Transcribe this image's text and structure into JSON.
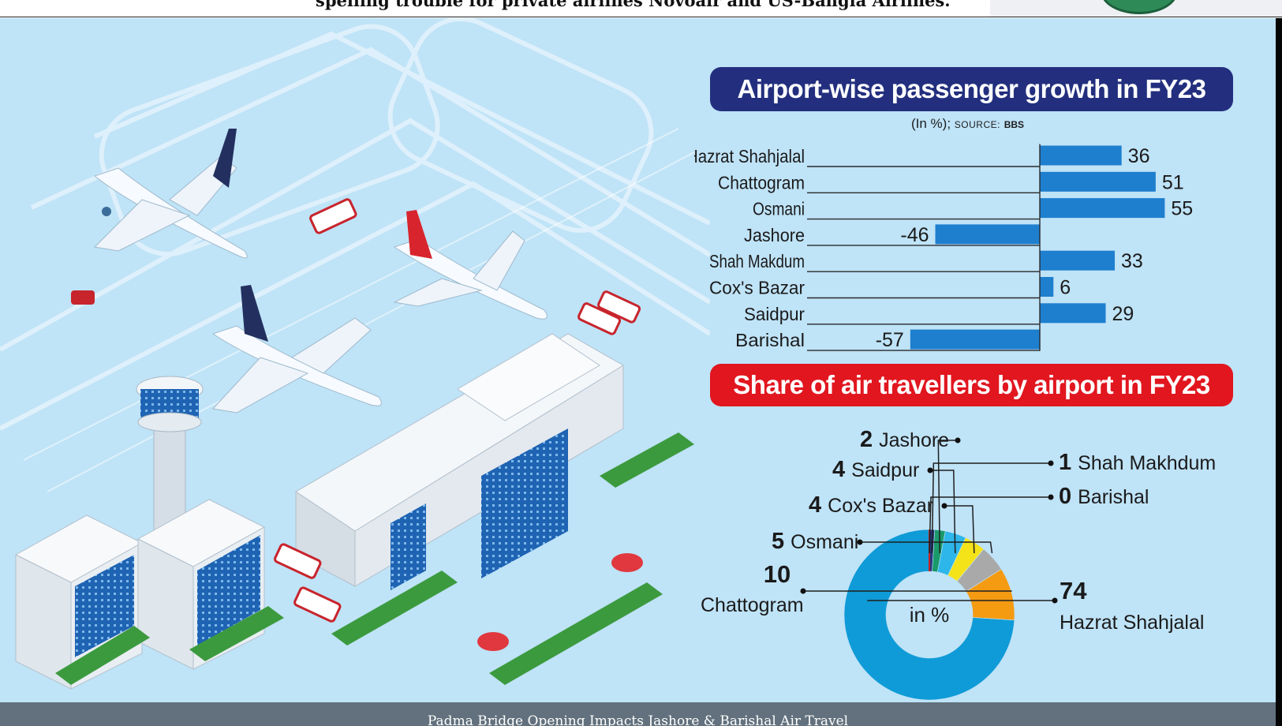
{
  "page": {
    "top_caption": "spelling trouble for private airlines Novoair and US-Bangla Airlines.",
    "footer_caption": "Padma Bridge Opening Impacts Jashore & Barishal Air Travel"
  },
  "colors": {
    "background": "#bfe3f7",
    "bar": "#1e7fcf",
    "bar_banner": "#232f7e",
    "pie_banner": "#e1161f"
  },
  "chart_data": [
    {
      "type": "bar",
      "orientation": "horizontal",
      "title": "Airport-wise passenger growth in FY23",
      "subtitle": "(In %);",
      "source_label": "SOURCE:",
      "source_value": "BBS",
      "categories": [
        "Hazrat Shahjalal",
        "Chattogram",
        "Osmani",
        "Jashore",
        "Shah Makdum",
        "Cox's Bazar",
        "Saidpur",
        "Barishal"
      ],
      "values": [
        36,
        51,
        55,
        -46,
        33,
        6,
        29,
        -57
      ],
      "xlim": [
        -57,
        55
      ],
      "grid": false
    },
    {
      "type": "pie",
      "title": "Share of air travellers by airport in FY23",
      "center_label": "in %",
      "donut": true,
      "slices": [
        {
          "label": "Hazrat Shahjalal",
          "value": 74,
          "color": "#0f9bd7"
        },
        {
          "label": "Chattogram",
          "value": 10,
          "color": "#f49b12"
        },
        {
          "label": "Osmani",
          "value": 5,
          "color": "#a9a9a9"
        },
        {
          "label": "Cox's Bazar",
          "value": 4,
          "color": "#f5e31a"
        },
        {
          "label": "Saidpur",
          "value": 4,
          "color": "#2db6ea"
        },
        {
          "label": "Jashore",
          "value": 2,
          "color": "#1a9a6b"
        },
        {
          "label": "Shah Makhdum",
          "value": 1,
          "color": "#27387f"
        },
        {
          "label": "Barishal",
          "value": 0,
          "color": "#cc2222"
        }
      ]
    }
  ]
}
